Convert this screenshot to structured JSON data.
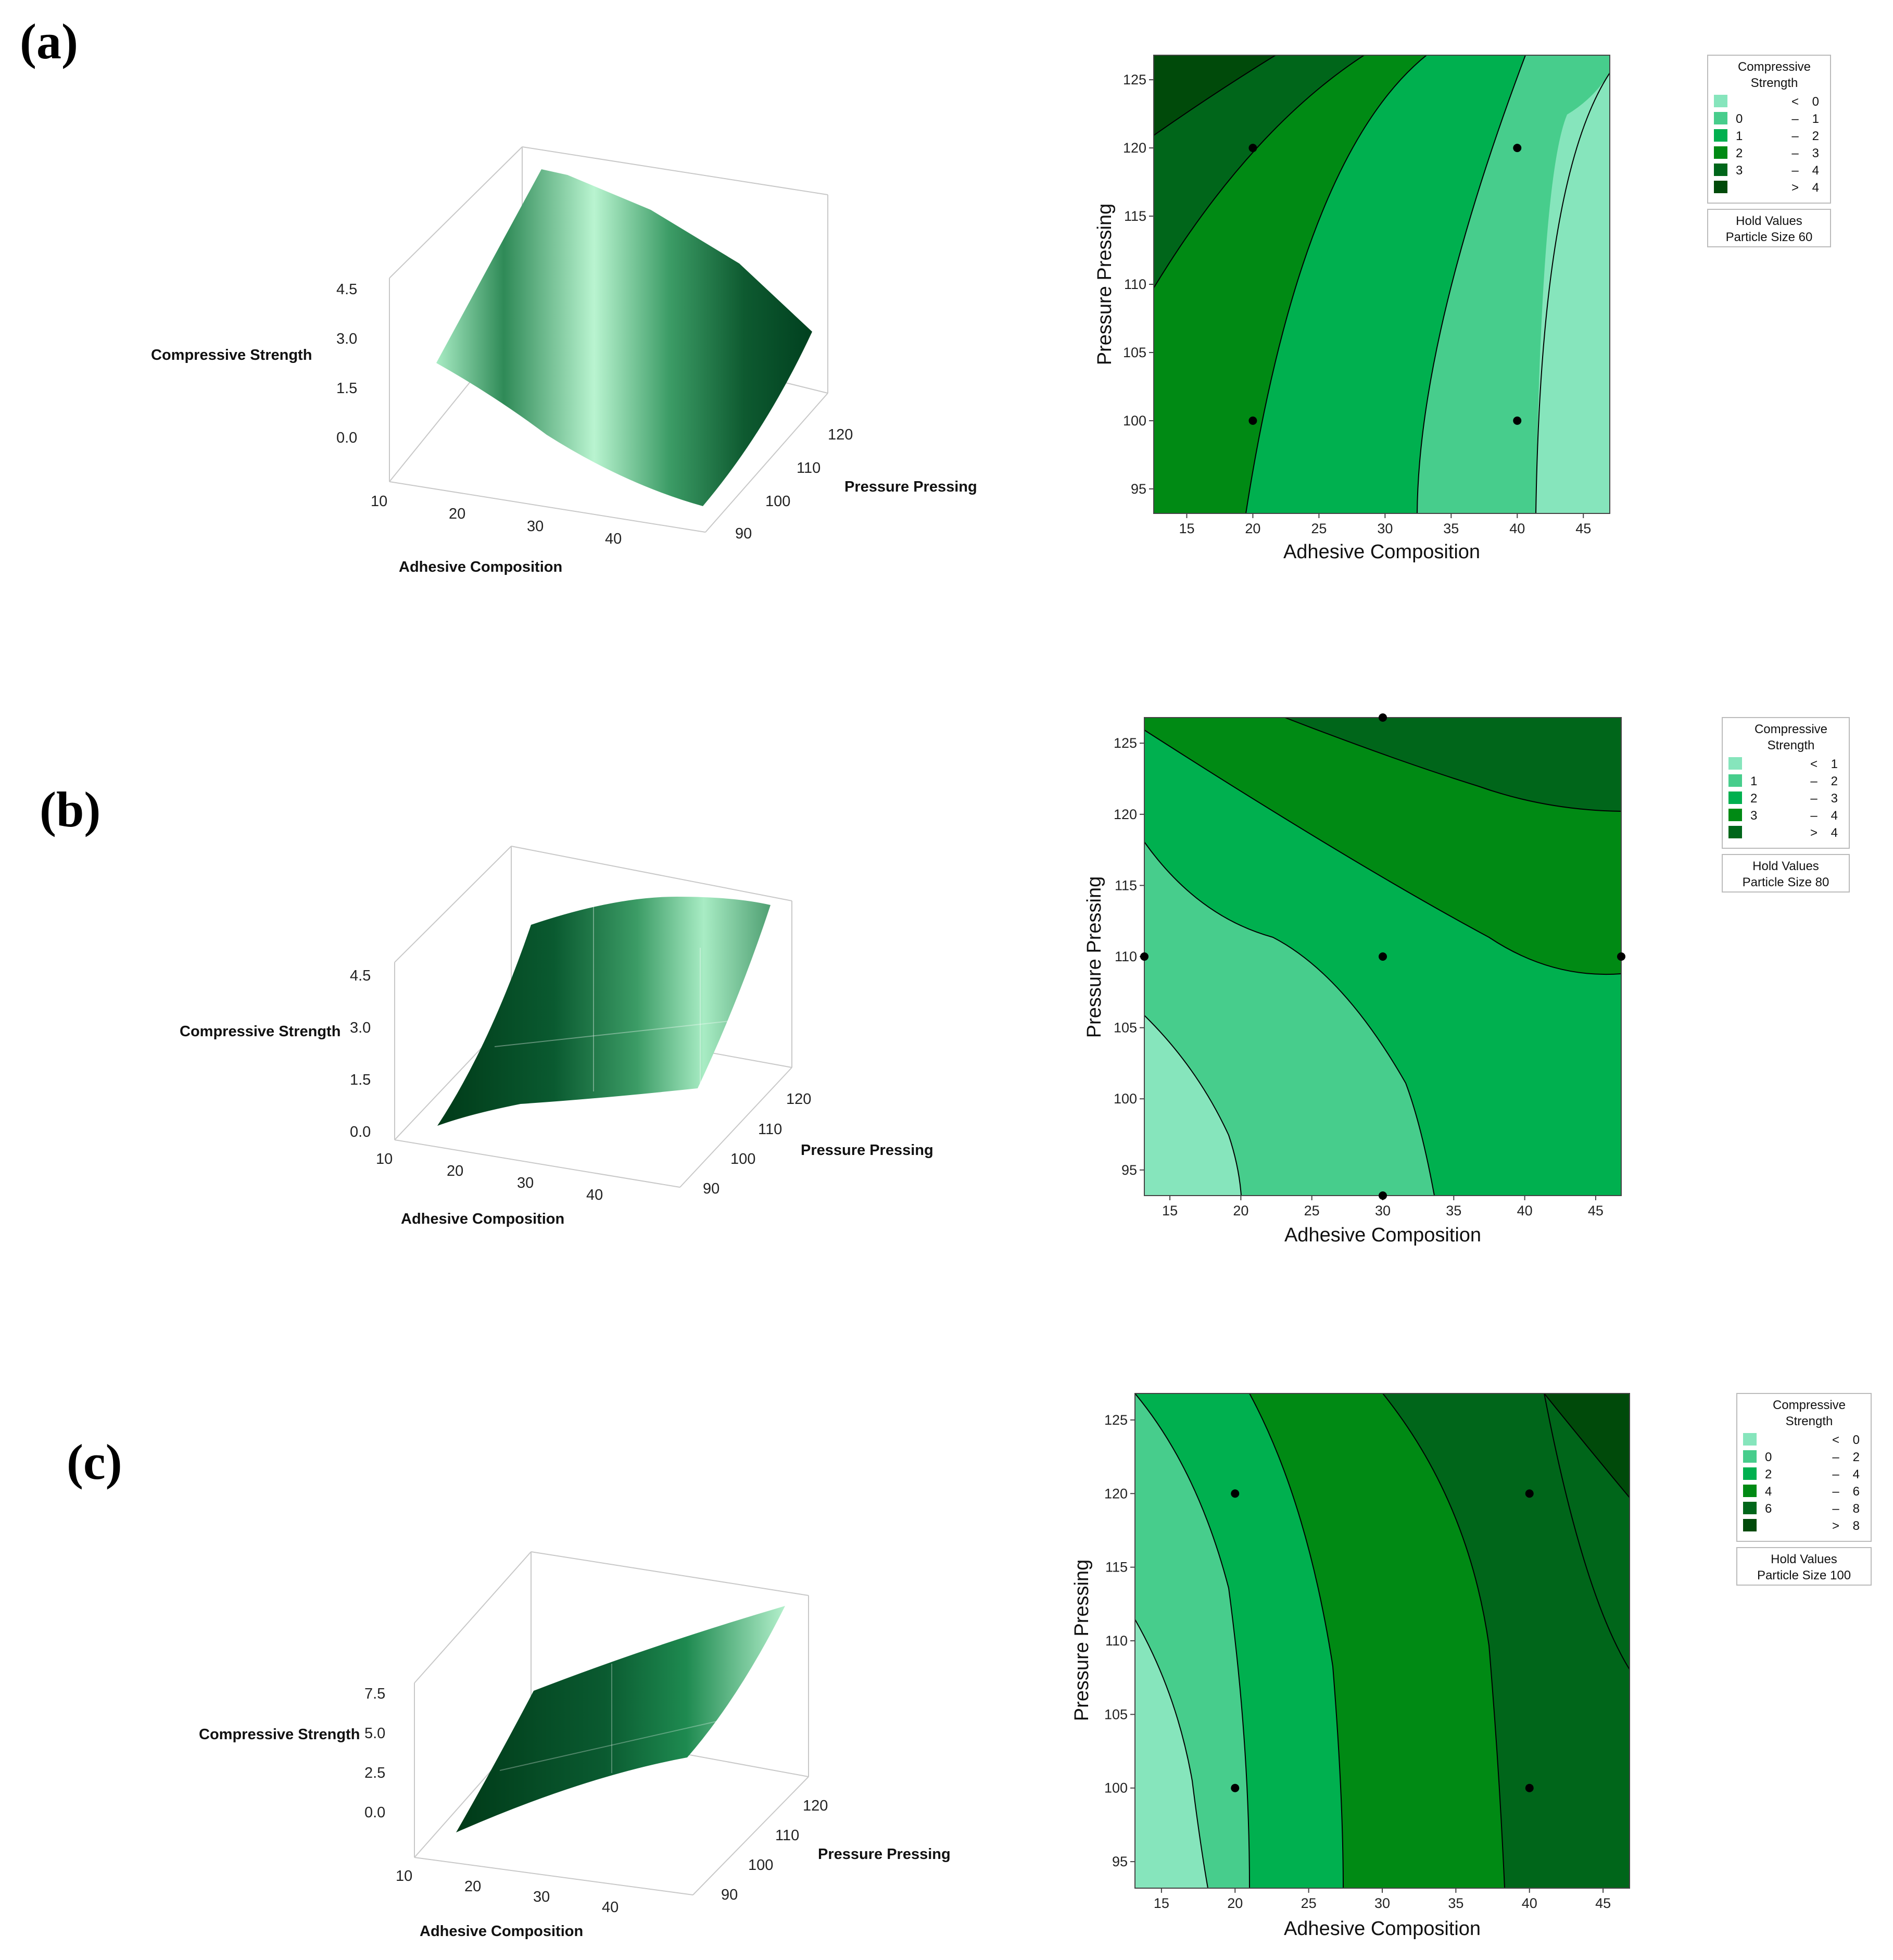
{
  "chart_data": [
    {
      "panel": "(a)",
      "hold": {
        "title": "Hold Values",
        "label": "Particle Size",
        "value": "60"
      },
      "surface": {
        "type": "surface",
        "xlabel": "Adhesive Composition",
        "ylabel": "Pressure Pressing",
        "zlabel": "Compressive Strength",
        "xticks": [
          "10",
          "20",
          "30",
          "40"
        ],
        "yticks": [
          "90",
          "100",
          "110",
          "120"
        ],
        "zticks": [
          "0.0",
          "1.5",
          "3.0",
          "4.5"
        ]
      },
      "contour": {
        "type": "contour",
        "xlabel": "Adhesive Composition",
        "ylabel": "Pressure Pressing",
        "xlim": [
          12.5,
          47
        ],
        "ylim": [
          93.2,
          126.8
        ],
        "xticks": [
          "15",
          "20",
          "25",
          "30",
          "35",
          "40",
          "45"
        ],
        "yticks": [
          "95",
          "100",
          "105",
          "110",
          "115",
          "120",
          "125"
        ],
        "legend": {
          "title": "Compressive\nStrength",
          "bins": [
            [
              "",
              "<",
              "0"
            ],
            [
              "0",
              "–",
              "1"
            ],
            [
              "1",
              "–",
              "2"
            ],
            [
              "2",
              "–",
              "3"
            ],
            [
              "3",
              "–",
              "4"
            ],
            [
              "",
              ">",
              "4"
            ]
          ]
        },
        "colors": [
          "#86e5bc",
          "#47cd8c",
          "#00b04f",
          "#008a14",
          "#00661a",
          "#004a0a"
        ],
        "design_points": [
          [
            20,
            100
          ],
          [
            20,
            120
          ],
          [
            40,
            100
          ],
          [
            40,
            120
          ]
        ]
      }
    },
    {
      "panel": "(b)",
      "hold": {
        "title": "Hold Values",
        "label": "Particle Size",
        "value": "80"
      },
      "surface": {
        "type": "surface",
        "xlabel": "Adhesive Composition",
        "ylabel": "Pressure Pressing",
        "zlabel": "Compressive Strength",
        "xticks": [
          "10",
          "20",
          "30",
          "40"
        ],
        "yticks": [
          "90",
          "100",
          "110",
          "120"
        ],
        "zticks": [
          "0.0",
          "1.5",
          "3.0",
          "4.5"
        ]
      },
      "contour": {
        "type": "contour",
        "xlabel": "Adhesive Composition",
        "ylabel": "Pressure Pressing",
        "xlim": [
          13.2,
          46.8
        ],
        "ylim": [
          93.2,
          126.8
        ],
        "xticks": [
          "15",
          "20",
          "25",
          "30",
          "35",
          "40",
          "45"
        ],
        "yticks": [
          "95",
          "100",
          "105",
          "110",
          "115",
          "120",
          "125"
        ],
        "legend": {
          "title": "Compressive\nStrength",
          "bins": [
            [
              "",
              "<",
              "1"
            ],
            [
              "1",
              "–",
              "2"
            ],
            [
              "2",
              "–",
              "3"
            ],
            [
              "3",
              "–",
              "4"
            ],
            [
              "",
              ">",
              "4"
            ]
          ]
        },
        "colors": [
          "#86e5bc",
          "#47cd8c",
          "#00b04f",
          "#008a14",
          "#00661a"
        ],
        "design_points": [
          [
            30,
            93.2
          ],
          [
            30,
            126.8
          ],
          [
            13.2,
            110
          ],
          [
            46.8,
            110
          ],
          [
            30,
            110
          ]
        ]
      }
    },
    {
      "panel": "(c)",
      "hold": {
        "title": "Hold Values",
        "label": "Particle Size",
        "value": "100"
      },
      "surface": {
        "type": "surface",
        "xlabel": "Adhesive Composition",
        "ylabel": "Pressure Pressing",
        "zlabel": "Compressive Strength",
        "xticks": [
          "10",
          "20",
          "30",
          "40"
        ],
        "yticks": [
          "90",
          "100",
          "110",
          "120"
        ],
        "zticks": [
          "0.0",
          "2.5",
          "5.0",
          "7.5"
        ]
      },
      "contour": {
        "type": "contour",
        "xlabel": "Adhesive Composition",
        "ylabel": "Pressure Pressing",
        "xlim": [
          13.2,
          46.8
        ],
        "ylim": [
          93.2,
          126.8
        ],
        "xticks": [
          "15",
          "20",
          "25",
          "30",
          "35",
          "40",
          "45"
        ],
        "yticks": [
          "95",
          "100",
          "105",
          "110",
          "115",
          "120",
          "125"
        ],
        "legend": {
          "title": "Compressive\nStrength",
          "bins": [
            [
              "",
              "<",
              "0"
            ],
            [
              "0",
              "–",
              "2"
            ],
            [
              "2",
              "–",
              "4"
            ],
            [
              "4",
              "–",
              "6"
            ],
            [
              "6",
              "–",
              "8"
            ],
            [
              "",
              ">",
              "8"
            ]
          ]
        },
        "colors": [
          "#86e5bc",
          "#47cd8c",
          "#00b04f",
          "#008a14",
          "#00661a",
          "#004a0a"
        ],
        "design_points": [
          [
            20,
            100
          ],
          [
            20,
            120
          ],
          [
            40,
            100
          ],
          [
            40,
            120
          ]
        ]
      }
    }
  ]
}
